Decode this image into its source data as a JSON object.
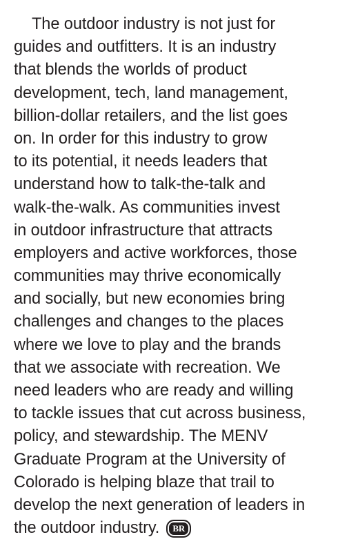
{
  "body": {
    "lines": [
      "The outdoor industry is not just for",
      "guides and outfitters. It is an industry",
      "that blends the worlds of product",
      "development, tech, land management,",
      "billion-dollar retailers, and the list goes",
      "on. In order for this industry to grow",
      "to its potential, it needs leaders that",
      "understand how to talk-the-talk and",
      "walk-the-walk. As communities invest",
      "in outdoor infrastructure that attracts",
      "employers and active workforces, those",
      "communities may thrive economically",
      "and socially, but new economies bring",
      "challenges and changes to the places",
      "where we love to play and the brands",
      "that we associate with recreation. We",
      "need leaders who are ready and willing",
      "to tackle issues that cut across business,",
      "policy, and stewardship. The MENV",
      "Graduate Program at the University of",
      "Colorado is helping blaze that trail to",
      "develop the next generation of leaders in",
      "the outdoor industry."
    ],
    "end_mark": "BR"
  }
}
